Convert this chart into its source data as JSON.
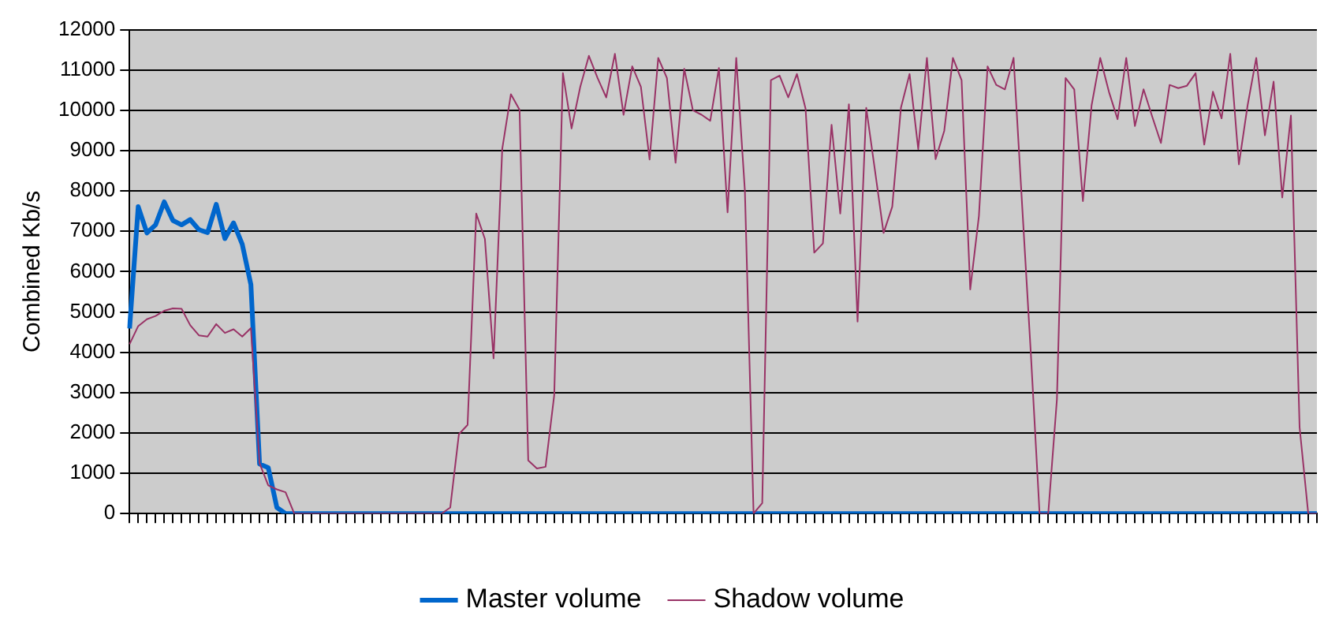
{
  "chart_data": {
    "type": "line",
    "ylabel": "Combined Kb/s",
    "categories": [
      null,
      null,
      null,
      null,
      null,
      null,
      null,
      null,
      null,
      null,
      null,
      null,
      null,
      null,
      null,
      null,
      null,
      null,
      null,
      null,
      null,
      null,
      null,
      null,
      null,
      null,
      null,
      null,
      null,
      null,
      null,
      null,
      null,
      null,
      null,
      null,
      null,
      null,
      null,
      null,
      null,
      null,
      null,
      null,
      null,
      null,
      null,
      null,
      null,
      null,
      null,
      null,
      null,
      null,
      null,
      null,
      null,
      null,
      null,
      null,
      null,
      null,
      null,
      null,
      null,
      null,
      null,
      null,
      null,
      null,
      null,
      null,
      null,
      null,
      null,
      null,
      null,
      null,
      null,
      null,
      null,
      null,
      null,
      null,
      null,
      null,
      null,
      null,
      null,
      null,
      null,
      null,
      null,
      null,
      null,
      null,
      null,
      null,
      null,
      null,
      null,
      null,
      null,
      null,
      null,
      null,
      null,
      null,
      null,
      null,
      null,
      null,
      null,
      null,
      null,
      null,
      null,
      null,
      null,
      null,
      null,
      null,
      null,
      null,
      null,
      null,
      null,
      null,
      null,
      null,
      null,
      null,
      null,
      null,
      null,
      null,
      null,
      null
    ],
    "series": [
      {
        "name": "Master volume",
        "color": "#0066cc",
        "values": [
          4590,
          7610,
          6960,
          7160,
          7730,
          7270,
          7160,
          7290,
          7040,
          6970,
          7670,
          6820,
          7210,
          6680,
          5680,
          1230,
          1140,
          150,
          0,
          0,
          0,
          0,
          0,
          0,
          0,
          0,
          0,
          0,
          0,
          0,
          0,
          0,
          0,
          0,
          0,
          0,
          0,
          0,
          0,
          0,
          0,
          0,
          0,
          0,
          0,
          0,
          0,
          0,
          0,
          0,
          0,
          0,
          0,
          0,
          0,
          0,
          0,
          0,
          0,
          0,
          0,
          0,
          0,
          0,
          0,
          0,
          0,
          0,
          0,
          0,
          0,
          0,
          0,
          0,
          0,
          0,
          0,
          0,
          0,
          0,
          0,
          0,
          0,
          0,
          0,
          0,
          0,
          0,
          0,
          0,
          0,
          0,
          0,
          0,
          0,
          0,
          0,
          0,
          0,
          0,
          0,
          0,
          0,
          0,
          0,
          0,
          0,
          0,
          0,
          0,
          0,
          0,
          0,
          0,
          0,
          0,
          0,
          0,
          0,
          0,
          0,
          0,
          0,
          0,
          0,
          0,
          0,
          0,
          0,
          0,
          0,
          0,
          0,
          0,
          0,
          0,
          0,
          0
        ]
      },
      {
        "name": "Shadow volume",
        "color": "#993366",
        "values": [
          4200,
          4650,
          4820,
          4900,
          5030,
          5090,
          5080,
          4670,
          4420,
          4390,
          4700,
          4480,
          4570,
          4390,
          4600,
          1250,
          700,
          600,
          530,
          0,
          0,
          0,
          0,
          0,
          0,
          0,
          0,
          0,
          0,
          0,
          0,
          0,
          0,
          0,
          0,
          0,
          0,
          150,
          1970,
          2200,
          7440,
          6810,
          3850,
          9040,
          10400,
          10010,
          1320,
          1120,
          1160,
          2940,
          10920,
          9550,
          10580,
          11350,
          10800,
          10320,
          11400,
          9890,
          11090,
          10580,
          8780,
          11300,
          10800,
          8700,
          11030,
          10000,
          9890,
          9740,
          11050,
          7470,
          11300,
          8000,
          0,
          260,
          10750,
          10860,
          10320,
          10900,
          10040,
          6470,
          6700,
          9640,
          7440,
          10150,
          4760,
          10060,
          8520,
          6960,
          7610,
          10060,
          10900,
          9040,
          11300,
          8790,
          9490,
          11300,
          10750,
          5560,
          7380,
          11090,
          10630,
          10520,
          11300,
          7600,
          3940,
          0,
          0,
          2830,
          10800,
          10520,
          7750,
          10120,
          11300,
          10460,
          9780,
          11300,
          9610,
          10520,
          9840,
          9190,
          10630,
          10550,
          10610,
          10920,
          9150,
          10460,
          9800,
          11400,
          8660,
          10120,
          11300,
          9380,
          10710,
          7840,
          9870,
          2140,
          0,
          0
        ]
      }
    ],
    "ylim": [
      0,
      12000
    ],
    "yticks": [
      0,
      1000,
      2000,
      3000,
      4000,
      5000,
      6000,
      7000,
      8000,
      9000,
      10000,
      11000,
      12000
    ],
    "grid": "y",
    "legend": "bottom",
    "marker": "none",
    "line_style": "solid"
  }
}
